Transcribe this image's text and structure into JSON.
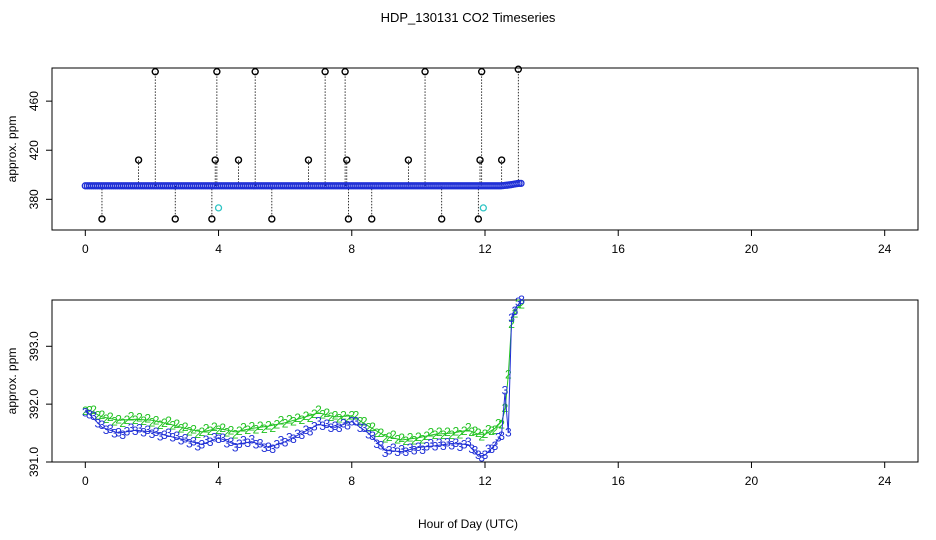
{
  "title": "HDP_130131  CO2 Timeseries",
  "xlabel": "Hour of Day (UTC)",
  "chart_data": [
    {
      "type": "scatter",
      "panel": "top",
      "ylabel": "approx. ppm",
      "xlim": [
        -1.0,
        25.0
      ],
      "ylim": [
        355,
        487
      ],
      "x_ticks": [
        0,
        4,
        8,
        12,
        16,
        20,
        24
      ],
      "y_ticks": [
        380,
        420,
        460
      ],
      "baseline": [
        {
          "x": 0.0,
          "y": 391
        },
        {
          "x": 2.0,
          "y": 391
        },
        {
          "x": 4.0,
          "y": 391
        },
        {
          "x": 6.0,
          "y": 391
        },
        {
          "x": 8.0,
          "y": 391
        },
        {
          "x": 10.0,
          "y": 391
        },
        {
          "x": 12.0,
          "y": 391
        },
        {
          "x": 12.5,
          "y": 391
        },
        {
          "x": 12.8,
          "y": 392
        },
        {
          "x": 13.0,
          "y": 393
        },
        {
          "x": 13.1,
          "y": 393
        }
      ],
      "spikes": [
        {
          "x": 0.5,
          "y": 364
        },
        {
          "x": 1.6,
          "y": 412
        },
        {
          "x": 2.1,
          "y": 484
        },
        {
          "x": 2.7,
          "y": 364
        },
        {
          "x": 3.8,
          "y": 364
        },
        {
          "x": 3.9,
          "y": 412
        },
        {
          "x": 3.95,
          "y": 484
        },
        {
          "x": 4.6,
          "y": 412
        },
        {
          "x": 5.1,
          "y": 484
        },
        {
          "x": 5.6,
          "y": 364
        },
        {
          "x": 6.7,
          "y": 412
        },
        {
          "x": 7.2,
          "y": 484
        },
        {
          "x": 7.8,
          "y": 484
        },
        {
          "x": 7.85,
          "y": 412
        },
        {
          "x": 7.9,
          "y": 364
        },
        {
          "x": 8.6,
          "y": 364
        },
        {
          "x": 9.7,
          "y": 412
        },
        {
          "x": 10.2,
          "y": 484
        },
        {
          "x": 10.7,
          "y": 364
        },
        {
          "x": 11.8,
          "y": 364
        },
        {
          "x": 11.85,
          "y": 412
        },
        {
          "x": 11.9,
          "y": 484
        },
        {
          "x": 12.5,
          "y": 412
        },
        {
          "x": 13.0,
          "y": 486
        }
      ],
      "cyan_points": [
        {
          "x": 4.0,
          "y": 373
        },
        {
          "x": 11.95,
          "y": 373
        }
      ]
    },
    {
      "type": "line",
      "panel": "bottom",
      "ylabel": "approx. ppm",
      "xlim": [
        -1.0,
        25.0
      ],
      "ylim": [
        391.0,
        393.8
      ],
      "x_ticks": [
        0,
        4,
        8,
        12,
        16,
        20,
        24
      ],
      "y_ticks": [
        391.0,
        392.0,
        393.0
      ],
      "series": [
        {
          "label_char": "2",
          "points": [
            [
              0.0,
              391.93
            ],
            [
              0.5,
              391.78
            ],
            [
              1.0,
              391.72
            ],
            [
              1.5,
              391.74
            ],
            [
              2.0,
              391.72
            ],
            [
              2.5,
              391.66
            ],
            [
              3.0,
              391.58
            ],
            [
              3.5,
              391.52
            ],
            [
              4.0,
              391.58
            ],
            [
              4.5,
              391.52
            ],
            [
              5.0,
              391.58
            ],
            [
              5.5,
              391.62
            ],
            [
              6.0,
              391.68
            ],
            [
              6.5,
              391.76
            ],
            [
              7.0,
              391.85
            ],
            [
              7.5,
              391.78
            ],
            [
              8.0,
              391.8
            ],
            [
              8.5,
              391.62
            ],
            [
              9.0,
              391.45
            ],
            [
              9.5,
              391.38
            ],
            [
              10.0,
              391.42
            ],
            [
              10.5,
              391.48
            ],
            [
              11.0,
              391.5
            ],
            [
              11.5,
              391.55
            ],
            [
              11.8,
              391.48
            ],
            [
              12.0,
              391.48
            ],
            [
              12.3,
              391.58
            ],
            [
              12.5,
              391.7
            ],
            [
              12.6,
              391.9
            ],
            [
              12.7,
              392.5
            ],
            [
              12.8,
              393.4
            ],
            [
              12.9,
              393.6
            ],
            [
              13.0,
              393.68
            ],
            [
              13.1,
              393.72
            ]
          ]
        },
        {
          "label_char": "3",
          "points": [
            [
              0.0,
              391.9
            ],
            [
              0.5,
              391.6
            ],
            [
              1.0,
              391.5
            ],
            [
              1.5,
              391.55
            ],
            [
              2.0,
              391.52
            ],
            [
              2.5,
              391.45
            ],
            [
              3.0,
              391.38
            ],
            [
              3.5,
              391.3
            ],
            [
              4.0,
              391.42
            ],
            [
              4.5,
              391.3
            ],
            [
              5.0,
              391.35
            ],
            [
              5.5,
              391.25
            ],
            [
              6.0,
              391.35
            ],
            [
              6.5,
              391.5
            ],
            [
              7.0,
              391.65
            ],
            [
              7.5,
              391.6
            ],
            [
              8.0,
              391.7
            ],
            [
              8.5,
              391.5
            ],
            [
              9.0,
              391.2
            ],
            [
              9.5,
              391.18
            ],
            [
              10.0,
              391.25
            ],
            [
              10.5,
              391.28
            ],
            [
              11.0,
              391.32
            ],
            [
              11.5,
              391.3
            ],
            [
              11.8,
              391.1
            ],
            [
              12.0,
              391.12
            ],
            [
              12.3,
              391.3
            ],
            [
              12.5,
              391.5
            ],
            [
              12.6,
              392.2
            ],
            [
              12.7,
              391.5
            ],
            [
              12.8,
              393.5
            ],
            [
              12.9,
              393.65
            ],
            [
              13.0,
              393.72
            ],
            [
              13.1,
              393.8
            ]
          ]
        }
      ]
    }
  ]
}
